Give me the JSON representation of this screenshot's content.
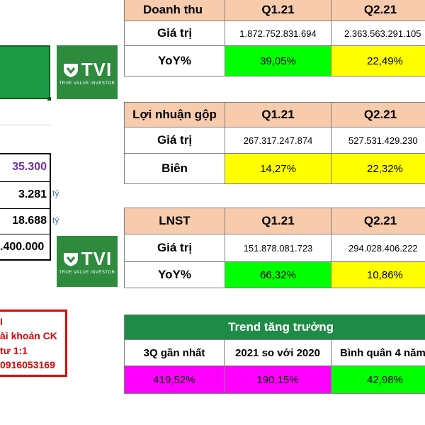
{
  "colors": {
    "header_peach": "#f8cbad",
    "green": "#00ff00",
    "yellow": "#ffff00",
    "magenta": "#ff00ff",
    "trend_header": "#1e8c46",
    "logo_green": "#2e8b3e",
    "purple_price": "#7030a0",
    "red_text": "#e00000"
  },
  "logo": {
    "text": "TVI",
    "tagline": "TRUE VALUE INVESTOR",
    "icon": "tvi-shield-icon"
  },
  "left_values": {
    "price": "35.300",
    "v2": "3.281",
    "v2_unit": "tỷ",
    "v3": "18.688",
    "v3_unit": "tỷ",
    "v4": ".400.000"
  },
  "contact": {
    "line1": "I",
    "line2": "ài khoản CK",
    "line3": "tư 1:1",
    "line4": "0916053169"
  },
  "revenue": {
    "title": "Doanh thu",
    "q1": "Q1.21",
    "q2": "Q2.21",
    "row1_label": "Giá trị",
    "row1_q1": "1.872.752.831.694",
    "row1_q2": "2.363.563.291.105",
    "row2_label": "YoY%",
    "row2_q1": "39,05%",
    "row2_q2": "22,49%"
  },
  "gross_profit": {
    "title": "Lợi nhuận gộp",
    "q1": "Q1.21",
    "q2": "Q2.21",
    "row1_label": "Giá trị",
    "row1_q1": "267.317.247.874",
    "row1_q2": "527.531.429.230",
    "row2_label": "Biên",
    "row2_q1": "14,27%",
    "row2_q2": "22,32%"
  },
  "net_profit": {
    "title": "LNST",
    "q1": "Q1.21",
    "q2": "Q2.21",
    "row1_label": "Giá trị",
    "row1_q1": "151.878.081.723",
    "row1_q2": "294.028.406.222",
    "row2_label": "YoY%",
    "row2_q1": "66,32%",
    "row2_q2": "10,86%"
  },
  "trend": {
    "title": "Trend tăng trưởng",
    "col1": "3Q gần nhất",
    "col2": "2021 so với 2020",
    "col3": "Bình quân 4 năm",
    "val1": "419,52%",
    "val2": "190,15%",
    "val3": "42,98%"
  }
}
